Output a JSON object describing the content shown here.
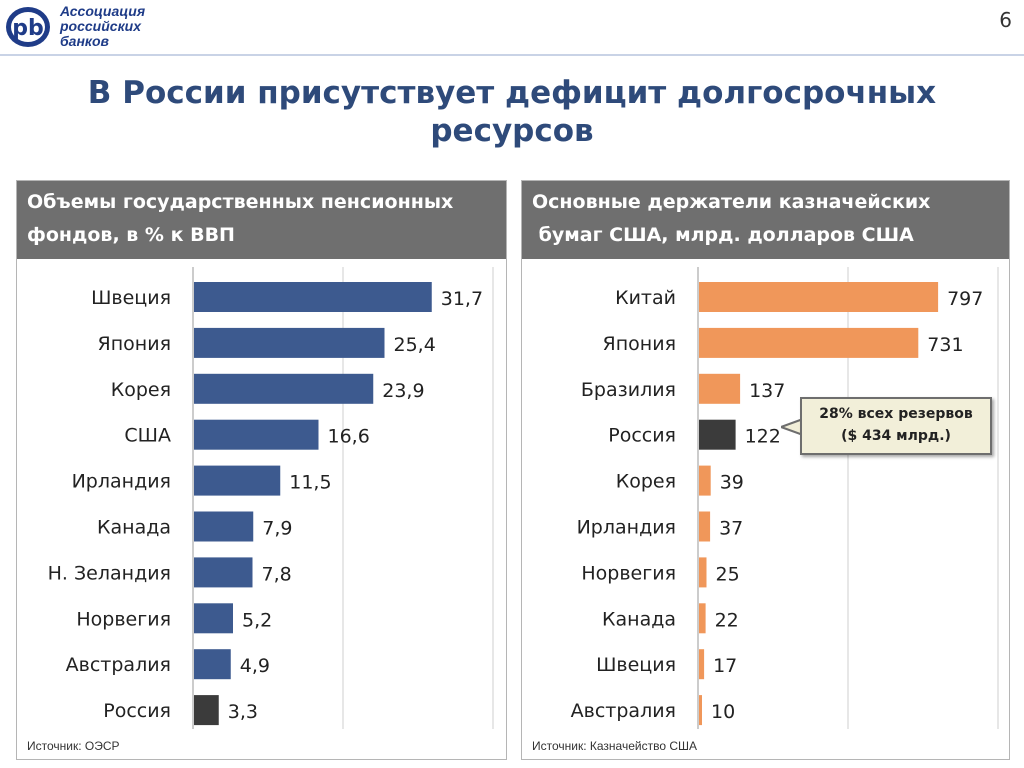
{
  "header": {
    "logo_lines": [
      "Ассоциация",
      "российских",
      "банков"
    ],
    "page_number": "6"
  },
  "slide_title": "В России присутствует дефицит долгосрочных ресурсов",
  "colors": {
    "title": "#2e4a7a",
    "header_bg": "#6f6f6f",
    "left_bar": "#3d5a8f",
    "right_bar": "#f0975a",
    "highlight_bar": "#3b3b3b"
  },
  "left_panel": {
    "title_lines": [
      "Объемы государственных пенсионных",
      "фондов, в % к ВВП"
    ],
    "source": "Источник: ОЭСР"
  },
  "right_panel": {
    "title_lines": [
      "Основные держатели казначейских",
      " бумаг США, млрд. долларов США"
    ],
    "source": "Источник: Казначейство США",
    "callout_lines": [
      "28% всех резервов",
      "($ 434 млрд.)"
    ]
  },
  "chart_data": [
    {
      "type": "bar",
      "orientation": "horizontal",
      "title": "Объемы государственных пенсионных фондов, в % к ВВП",
      "categories": [
        "Швеция",
        "Япония",
        "Корея",
        "США",
        "Ирландия",
        "Канада",
        "Н. Зеландия",
        "Норвегия",
        "Австралия",
        "Россия"
      ],
      "values": [
        31.7,
        25.4,
        23.9,
        16.6,
        11.5,
        7.9,
        7.8,
        5.2,
        4.9,
        3.3
      ],
      "value_labels": [
        "31,7",
        "25,4",
        "23,9",
        "16,6",
        "11,5",
        "7,9",
        "7,8",
        "5,2",
        "4,9",
        "3,3"
      ],
      "highlight": "Россия",
      "xlim": [
        0,
        40
      ],
      "grid": "vertical",
      "legend": "none"
    },
    {
      "type": "bar",
      "orientation": "horizontal",
      "title": "Основные держатели казначейских бумаг США, млрд. долларов США",
      "categories": [
        "Китай",
        "Япония",
        "Бразилия",
        "Россия",
        "Корея",
        "Ирландия",
        "Норвегия",
        "Канада",
        "Швеция",
        "Австралия"
      ],
      "values": [
        797,
        731,
        137,
        122,
        39,
        37,
        25,
        22,
        17,
        10
      ],
      "value_labels": [
        "797",
        "731",
        "137",
        "122",
        "39",
        "37",
        "25",
        "22",
        "17",
        "10"
      ],
      "highlight": "Россия",
      "xlim": [
        0,
        1000
      ],
      "grid": "vertical",
      "legend": "none"
    }
  ]
}
